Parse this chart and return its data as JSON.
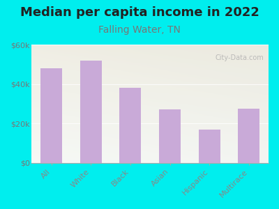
{
  "title": "Median per capita income in 2022",
  "subtitle": "Falling Water, TN",
  "categories": [
    "All",
    "White",
    "Black",
    "Asian",
    "Hispanic",
    "Multirace"
  ],
  "values": [
    48000,
    52000,
    38000,
    27000,
    17000,
    27500
  ],
  "bar_color": "#c9aad8",
  "background_outer": "#00eeee",
  "title_color": "#222222",
  "subtitle_color": "#777777",
  "tick_label_color": "#888888",
  "ytick_label_color": "#777777",
  "ylim": [
    0,
    60000
  ],
  "yticks": [
    0,
    20000,
    40000,
    60000
  ],
  "ytick_labels": [
    "$0",
    "$20k",
    "$40k",
    "$60k"
  ],
  "watermark": "City-Data.com",
  "title_fontsize": 13,
  "subtitle_fontsize": 10,
  "tick_fontsize": 8,
  "ytick_fontsize": 8
}
